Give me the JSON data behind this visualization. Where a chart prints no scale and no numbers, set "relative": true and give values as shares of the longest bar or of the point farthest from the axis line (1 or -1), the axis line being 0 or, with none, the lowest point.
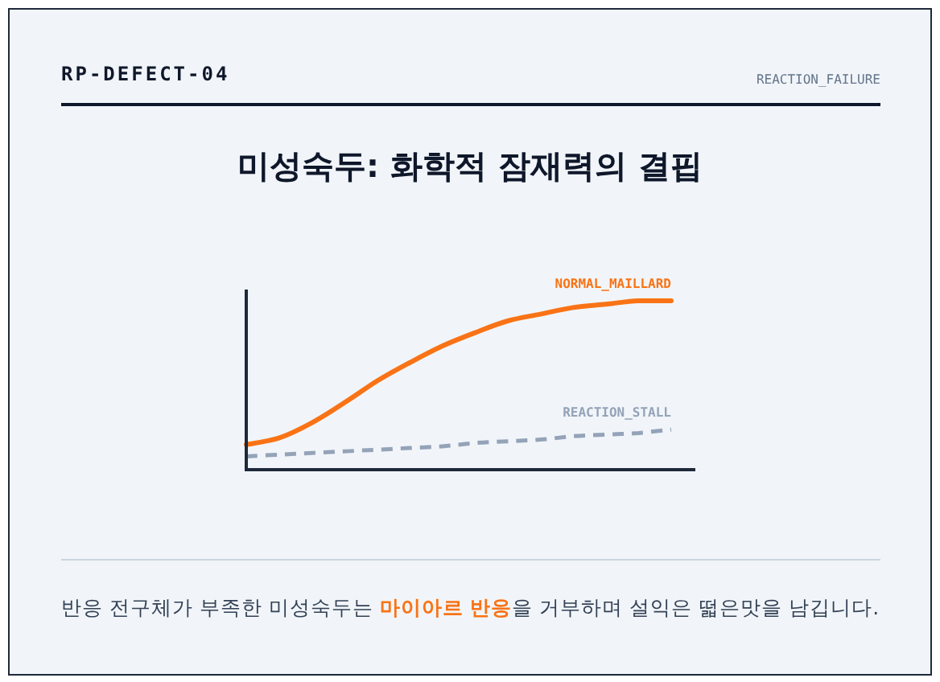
{
  "chart_data": {
    "type": "line",
    "title": "미성숙두: 화학적 잠재력의 결핍",
    "relative": true,
    "categories": [
      null,
      null,
      null,
      null,
      null,
      null,
      null,
      null,
      null,
      null,
      null,
      null,
      null,
      null
    ],
    "series": [
      {
        "name": "NORMAL_MAILLARD",
        "color": "#f97316",
        "values": [
          0.14,
          0.18,
          0.27,
          0.39,
          0.52,
          0.63,
          0.73,
          0.81,
          0.88,
          0.92,
          0.96,
          0.98,
          1.0,
          1.0
        ]
      },
      {
        "name": "REACTION_STALL",
        "color": "#94a3b8",
        "line_style": "dashed",
        "values": [
          0.07,
          0.08,
          0.09,
          0.1,
          0.11,
          0.12,
          0.13,
          0.15,
          0.16,
          0.17,
          0.19,
          0.2,
          0.21,
          0.23
        ]
      }
    ],
    "annotations": [
      "RP-DEFECT-04",
      "REACTION_FAILURE",
      "반응 전구체가 부족한 미성숙두는 **마이아르 반응**을 거부하며 설익은 떫은맛을 남깁니다."
    ],
    "line_style": "solid"
  }
}
